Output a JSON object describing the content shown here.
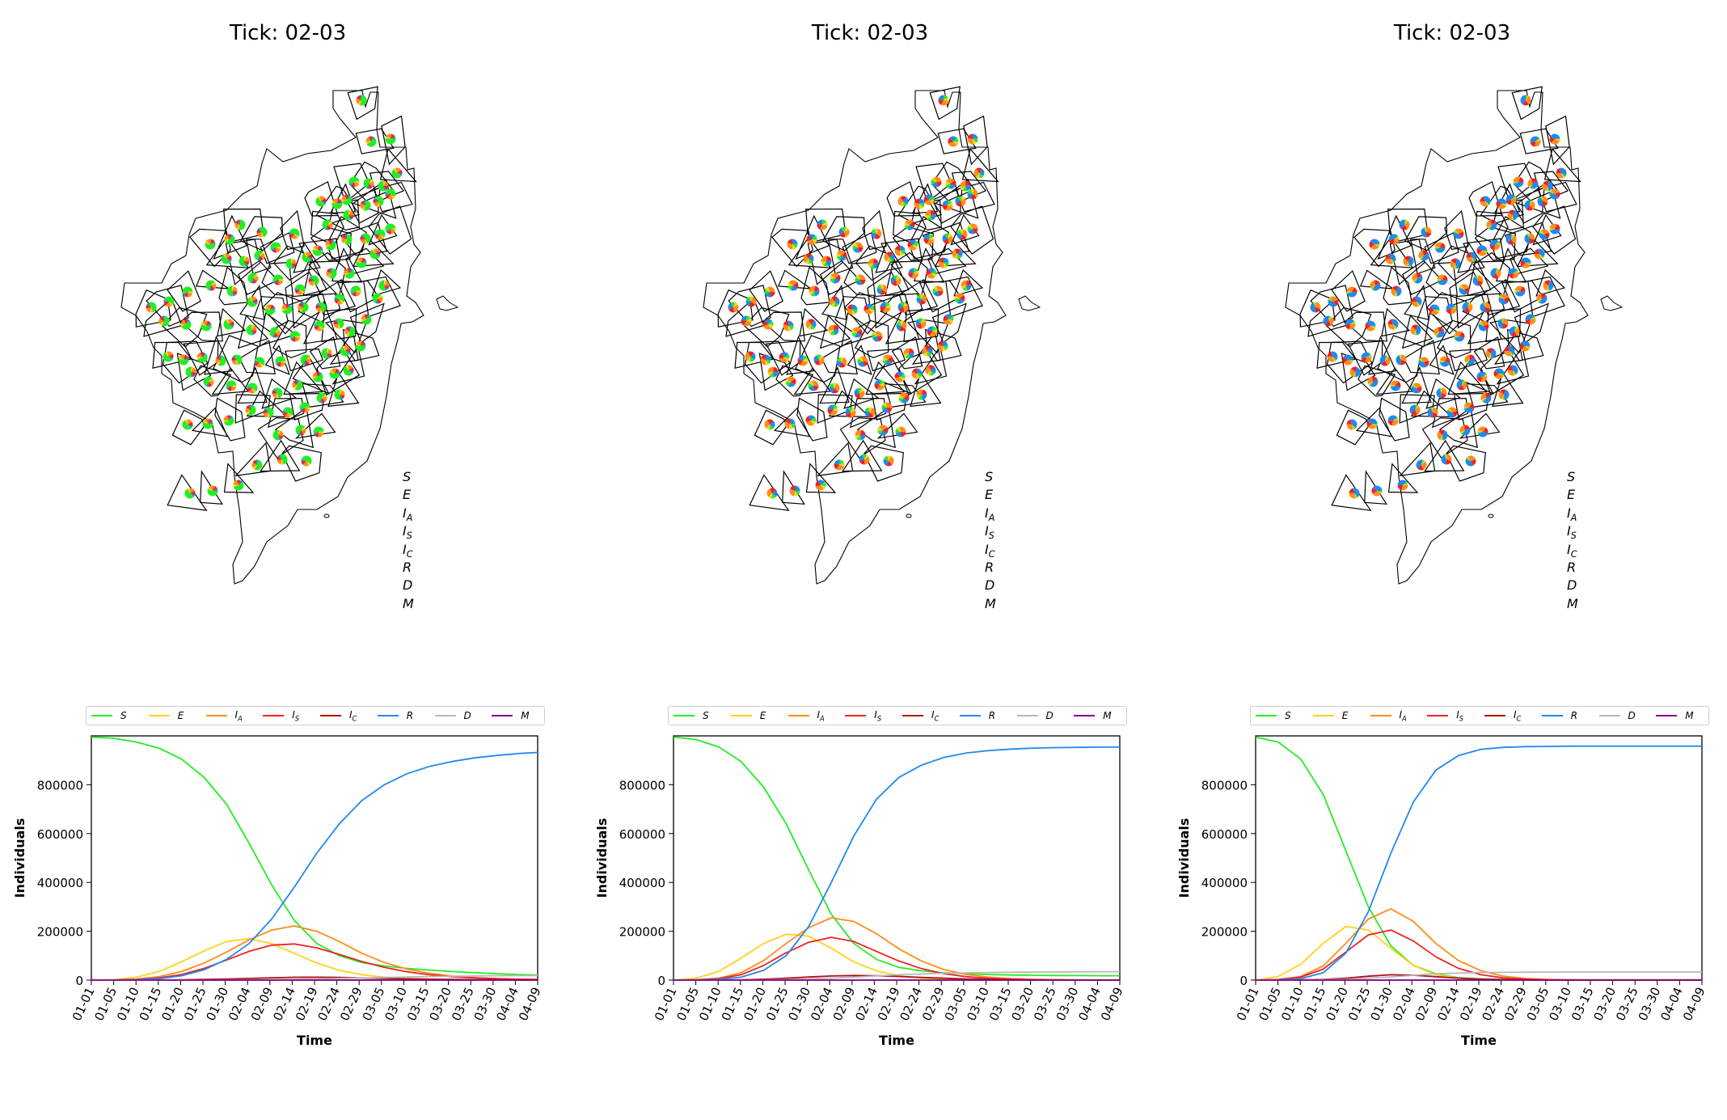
{
  "panels": [
    {
      "title": "Tick: 02-03",
      "pie_mix": "green"
    },
    {
      "title": "Tick: 02-03",
      "pie_mix": "mixed"
    },
    {
      "title": "Tick: 02-03",
      "pie_mix": "blue"
    }
  ],
  "compartments": [
    {
      "key": "S",
      "label": "S",
      "sub": "",
      "color": "#22ee22"
    },
    {
      "key": "E",
      "label": "E",
      "sub": "",
      "color": "#ffd21a"
    },
    {
      "key": "IA",
      "label": "I",
      "sub": "A",
      "color": "#ff8c1a"
    },
    {
      "key": "IS",
      "label": "I",
      "sub": "S",
      "color": "#ee2222"
    },
    {
      "key": "IC",
      "label": "I",
      "sub": "C",
      "color": "#b01010"
    },
    {
      "key": "R",
      "label": "R",
      "sub": "",
      "color": "#2288ee"
    },
    {
      "key": "D",
      "label": "D",
      "sub": "",
      "color": "#b8b8b8"
    },
    {
      "key": "M",
      "label": "M",
      "sub": "",
      "color": "#880088"
    }
  ],
  "chart_data": [
    {
      "type": "line",
      "xlabel": "Time",
      "ylabel": "Individuals",
      "ylim": [
        0,
        1000000
      ],
      "yticks": [
        0,
        200000,
        400000,
        600000,
        800000
      ],
      "xticks": [
        "01-01",
        "01-05",
        "01-10",
        "01-15",
        "01-20",
        "01-25",
        "01-30",
        "02-04",
        "02-09",
        "02-14",
        "02-19",
        "02-24",
        "02-29",
        "03-05",
        "03-10",
        "03-15",
        "03-20",
        "03-25",
        "03-30",
        "04-04",
        "04-09"
      ],
      "x_days": [
        0,
        99
      ],
      "series": [
        {
          "name": "S",
          "x": [
            0,
            5,
            10,
            15,
            20,
            25,
            30,
            35,
            40,
            45,
            50,
            55,
            60,
            65,
            70,
            75,
            80,
            85,
            90,
            95,
            99
          ],
          "y": [
            995000,
            990000,
            975000,
            950000,
            905000,
            830000,
            720000,
            560000,
            390000,
            245000,
            150000,
            100000,
            72000,
            58000,
            48000,
            41000,
            35000,
            30000,
            26000,
            23000,
            21000
          ]
        },
        {
          "name": "E",
          "x": [
            0,
            5,
            10,
            15,
            20,
            25,
            30,
            35,
            40,
            45,
            50,
            55,
            60,
            65,
            70,
            75,
            80,
            85,
            90,
            95,
            99
          ],
          "y": [
            0,
            2000,
            12000,
            35000,
            75000,
            120000,
            158000,
            170000,
            150000,
            110000,
            70000,
            40000,
            22000,
            12000,
            7000,
            4000,
            2000,
            1000,
            500,
            200,
            100
          ]
        },
        {
          "name": "IA",
          "x": [
            0,
            5,
            10,
            15,
            20,
            25,
            30,
            35,
            40,
            45,
            50,
            55,
            60,
            65,
            70,
            75,
            80,
            85,
            90,
            95,
            99
          ],
          "y": [
            0,
            500,
            4000,
            14000,
            35000,
            70000,
            115000,
            165000,
            205000,
            222000,
            200000,
            158000,
            110000,
            72000,
            45000,
            28000,
            17000,
            10000,
            6000,
            3500,
            2500
          ]
        },
        {
          "name": "IS",
          "x": [
            0,
            5,
            10,
            15,
            20,
            25,
            30,
            35,
            40,
            45,
            50,
            55,
            60,
            65,
            70,
            75,
            80,
            85,
            90,
            95,
            99
          ],
          "y": [
            0,
            300,
            2500,
            9000,
            23000,
            48000,
            82000,
            118000,
            143000,
            148000,
            132000,
            105000,
            76000,
            52000,
            34000,
            22000,
            14000,
            9000,
            5500,
            3500,
            2500
          ]
        },
        {
          "name": "IC",
          "x": [
            0,
            5,
            10,
            15,
            20,
            25,
            30,
            35,
            40,
            45,
            50,
            55,
            60,
            65,
            70,
            75,
            80,
            85,
            90,
            95,
            99
          ],
          "y": [
            0,
            0,
            100,
            400,
            1000,
            2500,
            4500,
            7000,
            9500,
            11500,
            12000,
            11000,
            9000,
            7000,
            5000,
            3500,
            2500,
            1500,
            1000,
            700,
            500
          ]
        },
        {
          "name": "R",
          "x": [
            0,
            5,
            10,
            15,
            20,
            25,
            30,
            35,
            40,
            45,
            50,
            55,
            60,
            65,
            70,
            75,
            80,
            85,
            90,
            95,
            99
          ],
          "y": [
            0,
            200,
            1500,
            6000,
            18000,
            42000,
            85000,
            150000,
            250000,
            380000,
            520000,
            640000,
            735000,
            800000,
            845000,
            875000,
            895000,
            910000,
            920000,
            928000,
            932000
          ]
        },
        {
          "name": "D",
          "x": [
            0,
            10,
            20,
            30,
            40,
            50,
            60,
            70,
            80,
            90,
            99
          ],
          "y": [
            0,
            0,
            100,
            500,
            2000,
            5000,
            9000,
            13000,
            16000,
            18000,
            19000
          ]
        },
        {
          "name": "M",
          "x": [
            0,
            99
          ],
          "y": [
            0,
            0
          ]
        }
      ]
    },
    {
      "type": "line",
      "xlabel": "Time",
      "ylabel": "Individuals",
      "ylim": [
        0,
        1000000
      ],
      "yticks": [
        0,
        200000,
        400000,
        600000,
        800000
      ],
      "xticks": [
        "01-01",
        "01-05",
        "01-10",
        "01-15",
        "01-20",
        "01-25",
        "01-30",
        "02-04",
        "02-09",
        "02-14",
        "02-19",
        "02-24",
        "02-29",
        "03-05",
        "03-10",
        "03-15",
        "03-20",
        "03-25",
        "03-30",
        "04-04",
        "04-09"
      ],
      "x_days": [
        0,
        99
      ],
      "series": [
        {
          "name": "S",
          "x": [
            0,
            5,
            10,
            15,
            20,
            25,
            30,
            35,
            40,
            45,
            50,
            55,
            60,
            65,
            70,
            75,
            80,
            85,
            90,
            95,
            99
          ],
          "y": [
            995000,
            985000,
            955000,
            895000,
            790000,
            640000,
            450000,
            270000,
            150000,
            85000,
            52000,
            38000,
            30000,
            26000,
            23000,
            21000,
            20000,
            19000,
            18500,
            18000,
            18000
          ]
        },
        {
          "name": "E",
          "x": [
            0,
            5,
            10,
            15,
            20,
            25,
            30,
            35,
            40,
            45,
            50,
            55,
            60,
            65,
            70,
            75,
            80,
            85,
            90,
            95,
            99
          ],
          "y": [
            0,
            8000,
            35000,
            90000,
            150000,
            188000,
            180000,
            130000,
            75000,
            38000,
            18000,
            8000,
            3500,
            1500,
            600,
            200,
            100,
            0,
            0,
            0,
            0
          ]
        },
        {
          "name": "IA",
          "x": [
            0,
            5,
            10,
            15,
            20,
            25,
            30,
            35,
            40,
            45,
            50,
            55,
            60,
            65,
            70,
            75,
            80,
            85,
            90,
            95,
            99
          ],
          "y": [
            0,
            1500,
            8000,
            30000,
            80000,
            150000,
            215000,
            255000,
            240000,
            190000,
            128000,
            78000,
            43000,
            23000,
            12000,
            6000,
            3000,
            1500,
            700,
            300,
            200
          ]
        },
        {
          "name": "IS",
          "x": [
            0,
            5,
            10,
            15,
            20,
            25,
            30,
            35,
            40,
            45,
            50,
            55,
            60,
            65,
            70,
            75,
            80,
            85,
            90,
            95,
            99
          ],
          "y": [
            0,
            1000,
            6000,
            22000,
            60000,
            112000,
            155000,
            175000,
            158000,
            118000,
            78000,
            47000,
            26000,
            14000,
            7000,
            3500,
            1800,
            900,
            400,
            200,
            100
          ]
        },
        {
          "name": "IC",
          "x": [
            0,
            5,
            10,
            15,
            20,
            25,
            30,
            35,
            40,
            45,
            50,
            55,
            60,
            65,
            70,
            75,
            80,
            85,
            90,
            95,
            99
          ],
          "y": [
            0,
            0,
            300,
            1200,
            3500,
            7500,
            12500,
            17000,
            19000,
            18000,
            15000,
            11000,
            7500,
            4500,
            2700,
            1500,
            800,
            400,
            200,
            100,
            50
          ]
        },
        {
          "name": "R",
          "x": [
            0,
            5,
            10,
            15,
            20,
            25,
            30,
            35,
            40,
            45,
            50,
            55,
            60,
            65,
            70,
            75,
            80,
            85,
            90,
            95,
            99
          ],
          "y": [
            0,
            500,
            3000,
            12000,
            40000,
            100000,
            220000,
            400000,
            590000,
            740000,
            830000,
            880000,
            912000,
            930000,
            940000,
            946000,
            950000,
            952000,
            953000,
            954000,
            954000
          ]
        },
        {
          "name": "D",
          "x": [
            0,
            10,
            20,
            30,
            40,
            50,
            60,
            70,
            80,
            90,
            99
          ],
          "y": [
            0,
            100,
            800,
            4000,
            12000,
            22000,
            28000,
            31000,
            33000,
            34000,
            34500
          ]
        },
        {
          "name": "M",
          "x": [
            0,
            99
          ],
          "y": [
            0,
            0
          ]
        }
      ]
    },
    {
      "type": "line",
      "xlabel": "Time",
      "ylabel": "Individuals",
      "ylim": [
        0,
        1000000
      ],
      "yticks": [
        0,
        200000,
        400000,
        600000,
        800000
      ],
      "xticks": [
        "01-01",
        "01-05",
        "01-10",
        "01-15",
        "01-20",
        "01-25",
        "01-30",
        "02-04",
        "02-09",
        "02-14",
        "02-19",
        "02-24",
        "02-29",
        "03-05",
        "03-10",
        "03-15",
        "03-20",
        "03-25",
        "03-30",
        "04-04",
        "04-09"
      ],
      "x_days": [
        0,
        99
      ],
      "series": [
        {
          "name": "S",
          "x": [
            0,
            5,
            10,
            15,
            20,
            25,
            30,
            35,
            40,
            45,
            50,
            55,
            60,
            65,
            70,
            75,
            80,
            85,
            90,
            95,
            99
          ],
          "y": [
            995000,
            975000,
            905000,
            760000,
            530000,
            300000,
            140000,
            60000,
            25000,
            10000,
            5000,
            3000,
            2000,
            1500,
            1000,
            1000,
            1000,
            1000,
            1000,
            1000,
            1000
          ]
        },
        {
          "name": "E",
          "x": [
            0,
            5,
            10,
            15,
            20,
            25,
            30,
            35,
            40,
            45,
            50,
            55,
            60,
            65,
            70,
            75,
            80,
            85,
            90,
            95,
            99
          ],
          "y": [
            0,
            15000,
            65000,
            150000,
            220000,
            205000,
            130000,
            60000,
            22000,
            8000,
            2500,
            800,
            200,
            0,
            0,
            0,
            0,
            0,
            0,
            0,
            0
          ]
        },
        {
          "name": "IA",
          "x": [
            0,
            5,
            10,
            15,
            20,
            25,
            30,
            35,
            40,
            45,
            50,
            55,
            60,
            65,
            70,
            75,
            80,
            85,
            90,
            95,
            99
          ],
          "y": [
            0,
            2500,
            15000,
            58000,
            150000,
            250000,
            292000,
            240000,
            150000,
            80000,
            38000,
            16000,
            6500,
            2500,
            1000,
            400,
            100,
            0,
            0,
            0,
            0
          ]
        },
        {
          "name": "IS",
          "x": [
            0,
            5,
            10,
            15,
            20,
            25,
            30,
            35,
            40,
            45,
            50,
            55,
            60,
            65,
            70,
            75,
            80,
            85,
            90,
            95,
            99
          ],
          "y": [
            0,
            2000,
            12000,
            45000,
            115000,
            185000,
            205000,
            160000,
            95000,
            48000,
            22000,
            9000,
            3500,
            1300,
            500,
            200,
            100,
            0,
            0,
            0,
            0
          ]
        },
        {
          "name": "IC",
          "x": [
            0,
            5,
            10,
            15,
            20,
            25,
            30,
            35,
            40,
            45,
            50,
            55,
            60,
            65,
            70,
            75,
            80,
            85,
            90,
            95,
            99
          ],
          "y": [
            0,
            0,
            500,
            2500,
            8000,
            16000,
            22000,
            20000,
            14000,
            8000,
            4000,
            1800,
            700,
            300,
            100,
            0,
            0,
            0,
            0,
            0,
            0
          ]
        },
        {
          "name": "R",
          "x": [
            0,
            5,
            10,
            15,
            20,
            25,
            30,
            35,
            40,
            45,
            50,
            55,
            60,
            65,
            70,
            75,
            80,
            85,
            90,
            95,
            99
          ],
          "y": [
            0,
            800,
            6000,
            30000,
            110000,
            280000,
            520000,
            730000,
            860000,
            920000,
            945000,
            953000,
            956000,
            957000,
            958000,
            958000,
            958000,
            958000,
            958000,
            958000,
            958000
          ]
        },
        {
          "name": "D",
          "x": [
            0,
            10,
            20,
            30,
            40,
            50,
            60,
            70,
            80,
            90,
            99
          ],
          "y": [
            0,
            300,
            3000,
            13000,
            26000,
            31000,
            32500,
            33000,
            33000,
            33000,
            33000
          ]
        },
        {
          "name": "M",
          "x": [
            0,
            99
          ],
          "y": [
            0,
            0
          ]
        }
      ]
    }
  ]
}
